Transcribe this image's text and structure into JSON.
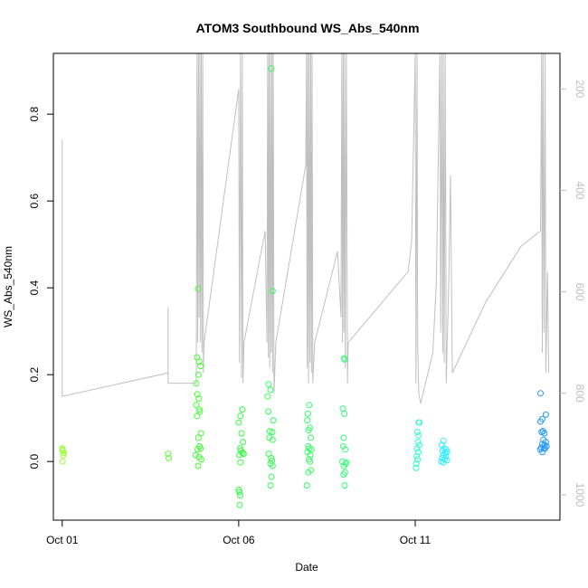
{
  "chart_data": {
    "type": "scatter",
    "title": "ATOM3 Southbound WS_Abs_540nm",
    "xlabel": "Date",
    "ylabel": "WS_Abs_540nm",
    "x_tick_labels": [
      "Oct 01",
      "Oct 06",
      "Oct 11"
    ],
    "x_ticks_day": [
      1,
      6,
      11
    ],
    "xlim_day": [
      0.75,
      15.1
    ],
    "ylim": [
      -0.135,
      0.94
    ],
    "y_ticks": [
      0.0,
      0.2,
      0.4,
      0.6,
      0.8
    ],
    "y_tick_labels": [
      "0.0",
      "0.2",
      "0.4",
      "0.6",
      "0.8"
    ],
    "y2_ticks": [
      200,
      400,
      600,
      800,
      1000
    ],
    "y2_tick_labels": [
      "200",
      "400",
      "600",
      "800",
      "1000"
    ],
    "y2lim": [
      1050,
      130
    ],
    "y2_inverted": true,
    "grid": false,
    "point_style": "open-circle",
    "points": [
      {
        "x": 1.0,
        "y": 0.03,
        "color": "#99ff33"
      },
      {
        "x": 1.02,
        "y": 0.025,
        "color": "#99ff33"
      },
      {
        "x": 1.03,
        "y": 0.015,
        "color": "#99ff33"
      },
      {
        "x": 1.05,
        "y": 0.02,
        "color": "#99ff33"
      },
      {
        "x": 1.01,
        "y": 0.0,
        "color": "#99ff33"
      },
      {
        "x": 1.0,
        "y": 0.028,
        "color": "#99ff33"
      },
      {
        "x": 4.0,
        "y": 0.018,
        "color": "#66ff33"
      },
      {
        "x": 4.02,
        "y": 0.008,
        "color": "#66ff33"
      },
      {
        "x": 4.85,
        "y": 0.398,
        "color": "#44ff33"
      },
      {
        "x": 4.82,
        "y": 0.24,
        "color": "#44ff33"
      },
      {
        "x": 4.88,
        "y": 0.23,
        "color": "#44ff33"
      },
      {
        "x": 4.92,
        "y": 0.22,
        "color": "#44ff33"
      },
      {
        "x": 4.86,
        "y": 0.2,
        "color": "#44ff33"
      },
      {
        "x": 4.8,
        "y": 0.18,
        "color": "#44ff33"
      },
      {
        "x": 4.83,
        "y": 0.155,
        "color": "#44ff33"
      },
      {
        "x": 4.87,
        "y": 0.145,
        "color": "#44ff33"
      },
      {
        "x": 4.8,
        "y": 0.13,
        "color": "#44ff33"
      },
      {
        "x": 4.88,
        "y": 0.12,
        "color": "#44ff33"
      },
      {
        "x": 4.9,
        "y": 0.115,
        "color": "#44ff33"
      },
      {
        "x": 4.82,
        "y": 0.105,
        "color": "#44ff33"
      },
      {
        "x": 4.93,
        "y": 0.065,
        "color": "#44ff33"
      },
      {
        "x": 4.86,
        "y": 0.055,
        "color": "#44ff33"
      },
      {
        "x": 4.89,
        "y": 0.035,
        "color": "#44ff33"
      },
      {
        "x": 4.92,
        "y": 0.03,
        "color": "#44ff33"
      },
      {
        "x": 4.84,
        "y": 0.028,
        "color": "#44ff33"
      },
      {
        "x": 4.78,
        "y": 0.015,
        "color": "#44ff33"
      },
      {
        "x": 4.88,
        "y": 0.01,
        "color": "#44ff33"
      },
      {
        "x": 4.94,
        "y": 0.005,
        "color": "#44ff33"
      },
      {
        "x": 4.85,
        "y": -0.01,
        "color": "#44ff33"
      },
      {
        "x": 6.1,
        "y": 0.12,
        "color": "#33ff44"
      },
      {
        "x": 6.05,
        "y": 0.105,
        "color": "#33ff44"
      },
      {
        "x": 6.0,
        "y": 0.09,
        "color": "#33ff44"
      },
      {
        "x": 6.08,
        "y": 0.065,
        "color": "#33ff44"
      },
      {
        "x": 6.12,
        "y": 0.045,
        "color": "#33ff44"
      },
      {
        "x": 6.04,
        "y": 0.03,
        "color": "#33ff44"
      },
      {
        "x": 6.07,
        "y": 0.025,
        "color": "#33ff44"
      },
      {
        "x": 6.1,
        "y": 0.02,
        "color": "#33ff44"
      },
      {
        "x": 6.02,
        "y": 0.015,
        "color": "#33ff44"
      },
      {
        "x": 6.14,
        "y": 0.018,
        "color": "#33ff44"
      },
      {
        "x": 6.05,
        "y": -0.002,
        "color": "#33ff44"
      },
      {
        "x": 6.0,
        "y": -0.065,
        "color": "#33ff44"
      },
      {
        "x": 6.02,
        "y": -0.07,
        "color": "#33ff44"
      },
      {
        "x": 6.04,
        "y": -0.078,
        "color": "#33ff44"
      },
      {
        "x": 6.03,
        "y": -0.1,
        "color": "#33ff44"
      },
      {
        "x": 6.92,
        "y": 0.905,
        "color": "#33ff55"
      },
      {
        "x": 6.96,
        "y": 0.393,
        "color": "#33ff55"
      },
      {
        "x": 6.85,
        "y": 0.178,
        "color": "#33ff55"
      },
      {
        "x": 6.9,
        "y": 0.165,
        "color": "#33ff55"
      },
      {
        "x": 6.82,
        "y": 0.15,
        "color": "#33ff55"
      },
      {
        "x": 6.84,
        "y": 0.115,
        "color": "#33ff55"
      },
      {
        "x": 6.98,
        "y": 0.095,
        "color": "#33ff55"
      },
      {
        "x": 6.88,
        "y": 0.07,
        "color": "#33ff55"
      },
      {
        "x": 6.95,
        "y": 0.068,
        "color": "#33ff55"
      },
      {
        "x": 6.87,
        "y": 0.055,
        "color": "#33ff55"
      },
      {
        "x": 6.96,
        "y": 0.05,
        "color": "#33ff55"
      },
      {
        "x": 6.85,
        "y": 0.018,
        "color": "#33ff55"
      },
      {
        "x": 6.92,
        "y": 0.008,
        "color": "#33ff55"
      },
      {
        "x": 6.94,
        "y": 0.002,
        "color": "#33ff55"
      },
      {
        "x": 6.9,
        "y": -0.005,
        "color": "#33ff55"
      },
      {
        "x": 6.96,
        "y": -0.01,
        "color": "#33ff55"
      },
      {
        "x": 6.93,
        "y": -0.035,
        "color": "#33ff55"
      },
      {
        "x": 6.9,
        "y": -0.055,
        "color": "#33ff55"
      },
      {
        "x": 8.0,
        "y": 0.13,
        "color": "#33ff66"
      },
      {
        "x": 7.96,
        "y": 0.11,
        "color": "#33ff66"
      },
      {
        "x": 7.94,
        "y": 0.095,
        "color": "#33ff66"
      },
      {
        "x": 8.02,
        "y": 0.078,
        "color": "#33ff66"
      },
      {
        "x": 7.98,
        "y": 0.072,
        "color": "#33ff66"
      },
      {
        "x": 8.04,
        "y": 0.055,
        "color": "#33ff66"
      },
      {
        "x": 7.97,
        "y": 0.035,
        "color": "#33ff66"
      },
      {
        "x": 8.0,
        "y": 0.03,
        "color": "#33ff66"
      },
      {
        "x": 8.06,
        "y": 0.028,
        "color": "#33ff66"
      },
      {
        "x": 7.95,
        "y": 0.022,
        "color": "#33ff66"
      },
      {
        "x": 8.03,
        "y": 0.015,
        "color": "#33ff66"
      },
      {
        "x": 7.99,
        "y": 0.005,
        "color": "#33ff66"
      },
      {
        "x": 8.02,
        "y": 0.0,
        "color": "#33ff66"
      },
      {
        "x": 8.05,
        "y": -0.02,
        "color": "#33ff66"
      },
      {
        "x": 7.97,
        "y": -0.025,
        "color": "#33ff66"
      },
      {
        "x": 7.93,
        "y": -0.055,
        "color": "#33ff66"
      },
      {
        "x": 8.98,
        "y": 0.238,
        "color": "#33ff77"
      },
      {
        "x": 9.0,
        "y": 0.235,
        "color": "#33ff77"
      },
      {
        "x": 8.95,
        "y": 0.122,
        "color": "#33ff77"
      },
      {
        "x": 8.99,
        "y": 0.11,
        "color": "#33ff77"
      },
      {
        "x": 8.97,
        "y": 0.055,
        "color": "#33ff77"
      },
      {
        "x": 8.96,
        "y": 0.035,
        "color": "#33ff77"
      },
      {
        "x": 9.02,
        "y": 0.028,
        "color": "#33ff77"
      },
      {
        "x": 8.94,
        "y": 0.0,
        "color": "#33ff77"
      },
      {
        "x": 9.05,
        "y": -0.002,
        "color": "#33ff77"
      },
      {
        "x": 9.03,
        "y": -0.005,
        "color": "#33ff77"
      },
      {
        "x": 8.98,
        "y": -0.01,
        "color": "#33ff77"
      },
      {
        "x": 9.01,
        "y": -0.025,
        "color": "#33ff77"
      },
      {
        "x": 8.97,
        "y": -0.03,
        "color": "#33ff77"
      },
      {
        "x": 9.0,
        "y": -0.055,
        "color": "#33ff77"
      },
      {
        "x": 11.1,
        "y": 0.09,
        "color": "#33ffcc"
      },
      {
        "x": 11.12,
        "y": 0.09,
        "color": "#33ffcc"
      },
      {
        "x": 11.06,
        "y": 0.068,
        "color": "#33ffcc"
      },
      {
        "x": 11.1,
        "y": 0.06,
        "color": "#33ffcc"
      },
      {
        "x": 11.08,
        "y": 0.045,
        "color": "#33ffcc"
      },
      {
        "x": 11.12,
        "y": 0.038,
        "color": "#33ffcc"
      },
      {
        "x": 11.05,
        "y": 0.03,
        "color": "#33ffcc"
      },
      {
        "x": 11.09,
        "y": 0.022,
        "color": "#33ffcc"
      },
      {
        "x": 11.04,
        "y": 0.012,
        "color": "#33ffcc"
      },
      {
        "x": 11.07,
        "y": 0.005,
        "color": "#33ffcc"
      },
      {
        "x": 11.03,
        "y": -0.005,
        "color": "#33ffcc"
      },
      {
        "x": 11.02,
        "y": -0.015,
        "color": "#33ffcc"
      },
      {
        "x": 11.8,
        "y": 0.048,
        "color": "#33eeff"
      },
      {
        "x": 11.75,
        "y": 0.038,
        "color": "#33eeff"
      },
      {
        "x": 11.82,
        "y": 0.03,
        "color": "#33eeff"
      },
      {
        "x": 11.88,
        "y": 0.028,
        "color": "#33eeff"
      },
      {
        "x": 11.78,
        "y": 0.025,
        "color": "#33eeff"
      },
      {
        "x": 11.85,
        "y": 0.02,
        "color": "#33eeff"
      },
      {
        "x": 11.9,
        "y": 0.022,
        "color": "#33eeff"
      },
      {
        "x": 11.8,
        "y": 0.015,
        "color": "#33eeff"
      },
      {
        "x": 11.87,
        "y": 0.012,
        "color": "#33eeff"
      },
      {
        "x": 11.76,
        "y": 0.008,
        "color": "#33eeff"
      },
      {
        "x": 11.83,
        "y": 0.005,
        "color": "#33eeff"
      },
      {
        "x": 11.9,
        "y": 0.003,
        "color": "#33eeff"
      },
      {
        "x": 11.74,
        "y": 0.0,
        "color": "#33eeff"
      },
      {
        "x": 11.8,
        "y": -0.002,
        "color": "#33eeff"
      },
      {
        "x": 14.55,
        "y": 0.157,
        "color": "#2299ff"
      },
      {
        "x": 14.7,
        "y": 0.108,
        "color": "#2299ff"
      },
      {
        "x": 14.6,
        "y": 0.098,
        "color": "#2299ff"
      },
      {
        "x": 14.55,
        "y": 0.092,
        "color": "#2299ff"
      },
      {
        "x": 14.62,
        "y": 0.07,
        "color": "#2299ff"
      },
      {
        "x": 14.58,
        "y": 0.068,
        "color": "#2299ff"
      },
      {
        "x": 14.66,
        "y": 0.065,
        "color": "#2299ff"
      },
      {
        "x": 14.63,
        "y": 0.05,
        "color": "#2299ff"
      },
      {
        "x": 14.7,
        "y": 0.045,
        "color": "#2299ff"
      },
      {
        "x": 14.6,
        "y": 0.04,
        "color": "#2299ff"
      },
      {
        "x": 14.67,
        "y": 0.038,
        "color": "#2299ff"
      },
      {
        "x": 14.72,
        "y": 0.035,
        "color": "#2299ff"
      },
      {
        "x": 14.57,
        "y": 0.032,
        "color": "#2299ff"
      },
      {
        "x": 14.64,
        "y": 0.03,
        "color": "#2299ff"
      },
      {
        "x": 14.54,
        "y": 0.028,
        "color": "#2299ff"
      },
      {
        "x": 14.6,
        "y": 0.022,
        "color": "#2299ff"
      },
      {
        "x": 14.68,
        "y": 0.03,
        "color": "#2299ff"
      }
    ],
    "line_color": "#bfbfbf",
    "line_axis": "y2",
    "line_points": [
      [
        1.0,
        350
      ],
      [
        1.0,
        365
      ],
      [
        1.0,
        300
      ],
      [
        1.0,
        806
      ],
      [
        4.0,
        760
      ],
      [
        4.0,
        630
      ],
      [
        4.0,
        780
      ],
      [
        4.8,
        780
      ],
      [
        4.82,
        130
      ],
      [
        4.84,
        700
      ],
      [
        4.86,
        130
      ],
      [
        4.88,
        650
      ],
      [
        4.9,
        130
      ],
      [
        4.92,
        700
      ],
      [
        4.94,
        130
      ],
      [
        4.96,
        720
      ],
      [
        4.98,
        130
      ],
      [
        5.0,
        760
      ],
      [
        5.02,
        700
      ],
      [
        6.0,
        200
      ],
      [
        6.02,
        740
      ],
      [
        6.05,
        130
      ],
      [
        6.08,
        770
      ],
      [
        6.1,
        130
      ],
      [
        6.12,
        780
      ],
      [
        6.15,
        700
      ],
      [
        6.75,
        480
      ],
      [
        6.8,
        700
      ],
      [
        6.82,
        130
      ],
      [
        6.84,
        730
      ],
      [
        6.86,
        130
      ],
      [
        6.88,
        750
      ],
      [
        6.9,
        130
      ],
      [
        6.92,
        720
      ],
      [
        6.94,
        130
      ],
      [
        6.96,
        760
      ],
      [
        6.98,
        130
      ],
      [
        7.0,
        800
      ],
      [
        7.05,
        700
      ],
      [
        7.9,
        350
      ],
      [
        7.92,
        130
      ],
      [
        7.94,
        750
      ],
      [
        7.96,
        130
      ],
      [
        7.98,
        780
      ],
      [
        8.0,
        130
      ],
      [
        8.02,
        740
      ],
      [
        8.04,
        130
      ],
      [
        8.06,
        760
      ],
      [
        8.08,
        130
      ],
      [
        8.1,
        780
      ],
      [
        8.15,
        700
      ],
      [
        8.8,
        520
      ],
      [
        8.9,
        650
      ],
      [
        8.92,
        130
      ],
      [
        8.94,
        700
      ],
      [
        8.96,
        130
      ],
      [
        8.98,
        680
      ],
      [
        9.0,
        130
      ],
      [
        9.02,
        750
      ],
      [
        9.05,
        130
      ],
      [
        9.08,
        780
      ],
      [
        9.1,
        700
      ],
      [
        10.8,
        560
      ],
      [
        10.9,
        500
      ],
      [
        11.0,
        130
      ],
      [
        11.02,
        780
      ],
      [
        11.05,
        130
      ],
      [
        11.07,
        700
      ],
      [
        11.1,
        800
      ],
      [
        11.15,
        820
      ],
      [
        11.5,
        720
      ],
      [
        11.6,
        580
      ],
      [
        11.7,
        130
      ],
      [
        11.72,
        680
      ],
      [
        11.75,
        130
      ],
      [
        11.78,
        720
      ],
      [
        11.8,
        130
      ],
      [
        11.82,
        740
      ],
      [
        11.85,
        130
      ],
      [
        11.88,
        780
      ],
      [
        11.9,
        720
      ],
      [
        11.95,
        580
      ],
      [
        12.0,
        370
      ],
      [
        12.05,
        760
      ],
      [
        13.0,
        620
      ],
      [
        14.0,
        510
      ],
      [
        14.55,
        480
      ],
      [
        14.58,
        130
      ],
      [
        14.6,
        720
      ],
      [
        14.62,
        130
      ],
      [
        14.65,
        680
      ],
      [
        14.68,
        130
      ],
      [
        14.7,
        760
      ],
      [
        14.72,
        660
      ],
      [
        14.75,
        560
      ],
      [
        14.78,
        760
      ]
    ]
  }
}
